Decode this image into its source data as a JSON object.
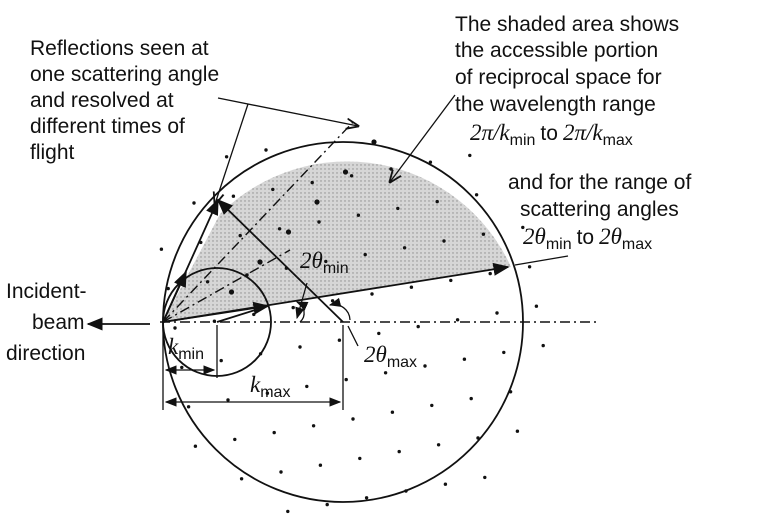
{
  "annotations": {
    "reflections": [
      "Reflections seen at",
      "one scattering angle",
      "and resolved at",
      "different times of",
      "flight"
    ],
    "shaded": [
      "The shaded area shows",
      "the accessible portion",
      "of reciprocal space for",
      "the wavelength range"
    ],
    "range_of": "and for the range of",
    "scattering_angles": "scattering angles",
    "to": "to",
    "incident": [
      "Incident-",
      "beam",
      "direction"
    ]
  },
  "symbols": {
    "two_pi": "2π/",
    "two_theta": "2θ",
    "k": "k",
    "min": "min",
    "max": "max",
    "theta_min_label": "2θ",
    "theta_max_label": "2θ"
  },
  "colors": {
    "shade": "#cfcfcf",
    "ink": "#111111"
  }
}
